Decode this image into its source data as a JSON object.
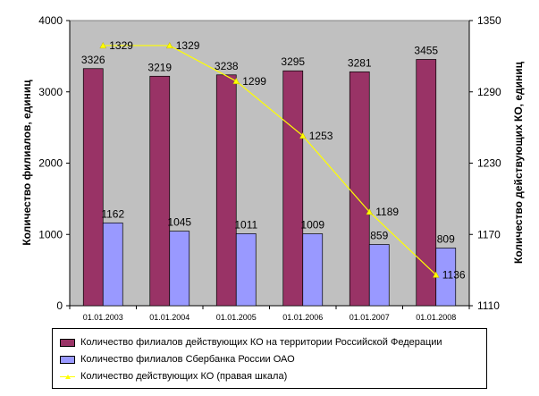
{
  "chart_data": {
    "type": "bar",
    "categories": [
      "01.01.2003",
      "01.01.2004",
      "01.01.2005",
      "01.01.2006",
      "01.01.2007",
      "01.01.2008"
    ],
    "series": [
      {
        "name": "Количество филиалов действующих КО на территории Российской Федерации",
        "type": "bar",
        "axis": "left",
        "color": "#993366",
        "values": [
          3326,
          3219,
          3238,
          3295,
          3281,
          3455
        ]
      },
      {
        "name": "Количество филиалов Сбербанка России ОАО",
        "type": "bar",
        "axis": "left",
        "color": "#9999ff",
        "values": [
          1162,
          1045,
          1011,
          1009,
          859,
          809
        ]
      },
      {
        "name": "Количество действующих КО (правая шкала)",
        "type": "line",
        "axis": "right",
        "color": "#ffff00",
        "values": [
          1329,
          1329,
          1299,
          1253,
          1189,
          1136
        ]
      }
    ],
    "ylabel": "Количество филиалов, единиц",
    "y2label": "Количество действующих КО, единиц",
    "ylim": [
      0,
      4000
    ],
    "yticks": [
      0,
      1000,
      2000,
      3000,
      4000
    ],
    "y2lim": [
      1110,
      1350
    ],
    "y2ticks": [
      1110,
      1170,
      1230,
      1290,
      1350
    ],
    "plot_background": "#c0c0c0",
    "grid": false,
    "legend_position": "bottom"
  }
}
